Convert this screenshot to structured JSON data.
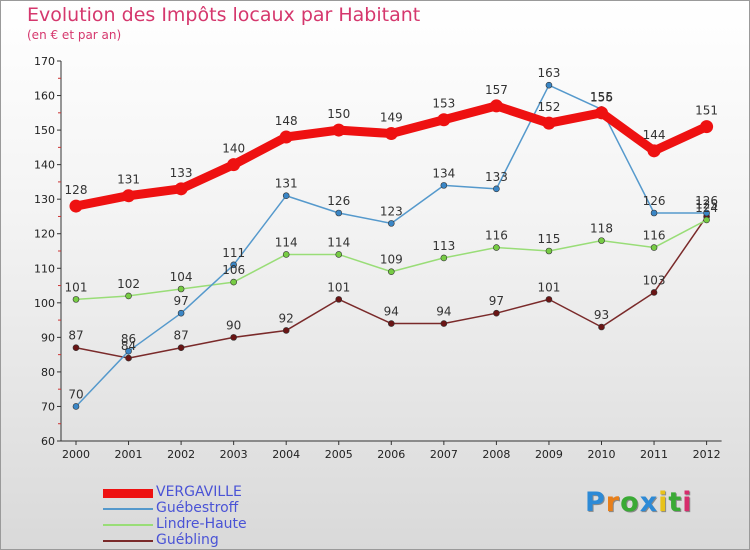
{
  "title": "Evolution des Impôts locaux par Habitant",
  "subtitle": "(en € et par an)",
  "chart_data": {
    "type": "line",
    "title": "Evolution des Impôts locaux par Habitant",
    "subtitle": "(en € et par an)",
    "xlabel": "",
    "ylabel": "",
    "x": [
      "2000",
      "2001",
      "2002",
      "2003",
      "2004",
      "2005",
      "2006",
      "2007",
      "2008",
      "2009",
      "2010",
      "2011",
      "2012"
    ],
    "ylim": [
      60,
      170
    ],
    "yticks": [
      60,
      70,
      80,
      90,
      100,
      110,
      120,
      130,
      140,
      150,
      160,
      170
    ],
    "grid": false,
    "legend_position": "bottom-left",
    "series": [
      {
        "name": "VERGAVILLE",
        "color": "#ee1111",
        "marker_color": "#ee1111",
        "values": [
          128,
          131,
          133,
          140,
          148,
          150,
          149,
          153,
          157,
          152,
          155,
          144,
          151
        ]
      },
      {
        "name": "Guébestroff",
        "color": "#5599cc",
        "marker_color": "#3a86c6",
        "values": [
          70,
          86,
          97,
          111,
          131,
          126,
          123,
          134,
          133,
          163,
          156,
          126,
          126
        ]
      },
      {
        "name": "Lindre-Haute",
        "color": "#99dd77",
        "marker_color": "#77cc44",
        "values": [
          101,
          102,
          104,
          106,
          114,
          114,
          109,
          113,
          116,
          115,
          118,
          116,
          124
        ]
      },
      {
        "name": "Guébling",
        "color": "#7a2a2a",
        "marker_color": "#6a1515",
        "values": [
          87,
          84,
          87,
          90,
          92,
          101,
          94,
          94,
          97,
          101,
          93,
          103,
          125
        ]
      }
    ]
  },
  "logo": {
    "letters": [
      "P",
      "r",
      "o",
      "x",
      "i",
      "t",
      "i"
    ],
    "colors": [
      "#2d8ad6",
      "#e87f1a",
      "#3aaa35",
      "#2d8ad6",
      "#e8c21a",
      "#3aaa35",
      "#d62d6d"
    ]
  }
}
